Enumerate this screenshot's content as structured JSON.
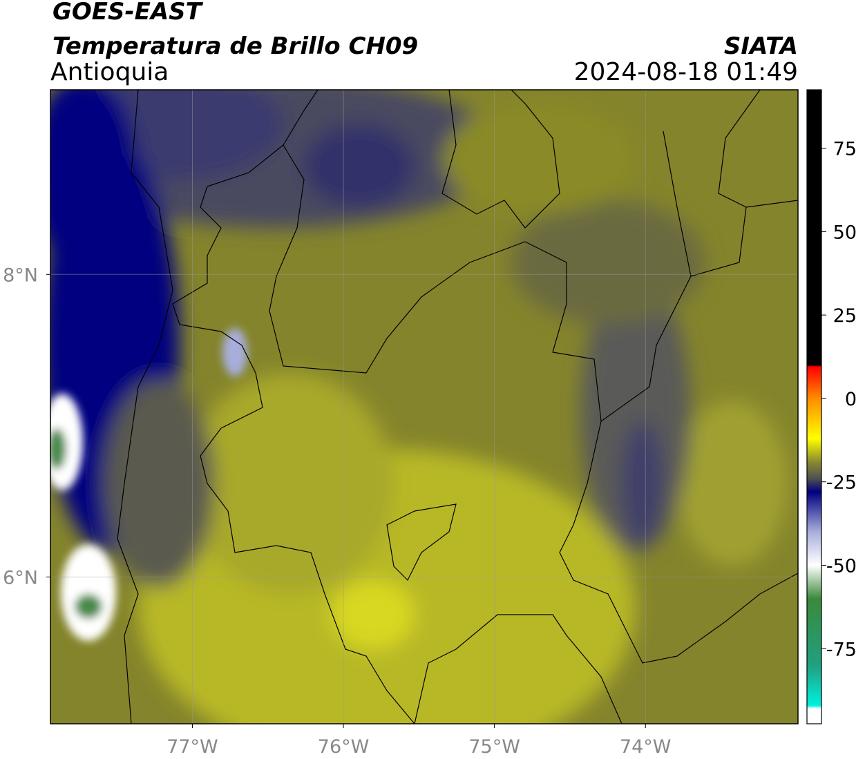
{
  "header": {
    "title": "GOES-EAST",
    "subtitle": "Temperatura de Brillo CH09",
    "region": "Antioquia",
    "source": "SIATA",
    "datetime": "2024-08-18 01:49"
  },
  "map": {
    "xlim": [
      -77.94,
      -72.99
    ],
    "ylim": [
      5.03,
      9.22
    ],
    "grid": true,
    "xticks": [
      {
        "value": -77,
        "label": "77°W"
      },
      {
        "value": -76,
        "label": "76°W"
      },
      {
        "value": -75,
        "label": "75°W"
      },
      {
        "value": -74,
        "label": "74°W"
      }
    ],
    "yticks": [
      {
        "value": 6,
        "label": "6°N"
      },
      {
        "value": 8,
        "label": "8°N"
      }
    ]
  },
  "colorbar": {
    "lim": [
      -97.5,
      92.5
    ],
    "ticks": [
      -75,
      -50,
      -25,
      0,
      25,
      50,
      75
    ],
    "colormap": [
      {
        "value": 92.5,
        "color": "#000000"
      },
      {
        "value": 10,
        "color": "#000000"
      },
      {
        "value": 9.5,
        "color": "#ff0000"
      },
      {
        "value": 0,
        "color": "#ff8c00"
      },
      {
        "value": -12,
        "color": "#ffff00"
      },
      {
        "value": -19,
        "color": "#8a8a30"
      },
      {
        "value": -24,
        "color": "#505050"
      },
      {
        "value": -28,
        "color": "#000080"
      },
      {
        "value": -40,
        "color": "#a8aedc"
      },
      {
        "value": -50,
        "color": "#ffffff"
      },
      {
        "value": -60,
        "color": "#3a8a3a"
      },
      {
        "value": -80,
        "color": "#20a080"
      },
      {
        "value": -92,
        "color": "#00f0e0"
      },
      {
        "value": -93,
        "color": "#ffffff"
      },
      {
        "value": -97.5,
        "color": "#ffffff"
      }
    ]
  }
}
